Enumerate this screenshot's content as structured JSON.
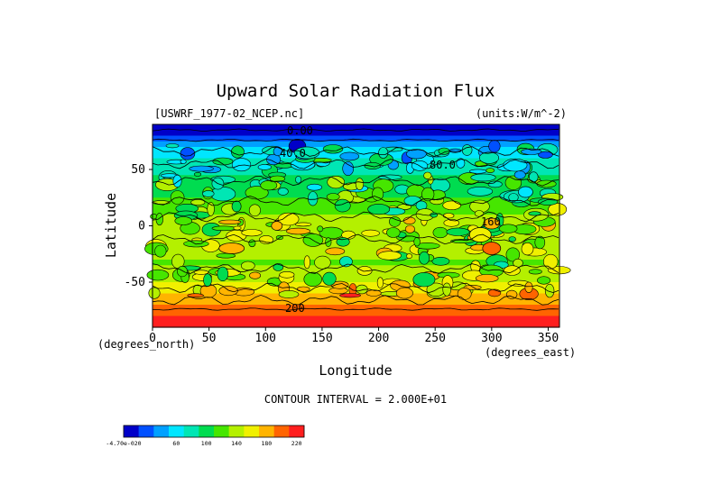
{
  "chart_data": {
    "type": "heatmap",
    "title": "Upward Solar Radiation Flux",
    "file_label": "[USWRF_1977-02_NCEP.nc]",
    "units_label": "(units:W/m^-2)",
    "xlabel": "Longitude",
    "ylabel": "Latitude",
    "x_unit_note": "(degrees_east)",
    "y_unit_note": "(degrees_north)",
    "xlim": [
      0,
      360
    ],
    "ylim": [
      -90,
      90
    ],
    "x_ticks": [
      0,
      50,
      100,
      150,
      200,
      250,
      300,
      350
    ],
    "y_ticks": [
      -50,
      0,
      50
    ],
    "contour_interval_text": "CONTOUR INTERVAL = 2.000E+01",
    "contour_labels": [
      "0.00",
      "40.0",
      "80.0",
      "160",
      "200"
    ],
    "colorbar": {
      "levels": [
        0,
        20,
        40,
        60,
        80,
        100,
        120,
        140,
        160,
        180,
        200,
        220
      ],
      "tick_labels": [
        "-4.70e-020",
        "60",
        "100",
        "140",
        "180",
        "220"
      ],
      "colors": [
        "#0000c8",
        "#0050ff",
        "#00a0ff",
        "#00e6ff",
        "#00e6b4",
        "#00dc50",
        "#46e600",
        "#b4f000",
        "#f0f000",
        "#ffb400",
        "#ff6400",
        "#ff1e1e"
      ]
    },
    "zonal_profile": [
      {
        "lat": 90,
        "value": 0
      },
      {
        "lat": 85,
        "value": 5
      },
      {
        "lat": 80,
        "value": 20
      },
      {
        "lat": 75,
        "value": 40
      },
      {
        "lat": 70,
        "value": 60
      },
      {
        "lat": 65,
        "value": 75
      },
      {
        "lat": 60,
        "value": 80
      },
      {
        "lat": 55,
        "value": 88
      },
      {
        "lat": 50,
        "value": 95
      },
      {
        "lat": 45,
        "value": 100
      },
      {
        "lat": 40,
        "value": 104
      },
      {
        "lat": 35,
        "value": 108
      },
      {
        "lat": 30,
        "value": 112
      },
      {
        "lat": 25,
        "value": 118
      },
      {
        "lat": 20,
        "value": 124
      },
      {
        "lat": 15,
        "value": 130
      },
      {
        "lat": 10,
        "value": 138
      },
      {
        "lat": 5,
        "value": 148
      },
      {
        "lat": 0,
        "value": 152
      },
      {
        "lat": -5,
        "value": 156
      },
      {
        "lat": -10,
        "value": 160
      },
      {
        "lat": -15,
        "value": 155
      },
      {
        "lat": -20,
        "value": 150
      },
      {
        "lat": -25,
        "value": 145
      },
      {
        "lat": -30,
        "value": 140
      },
      {
        "lat": -35,
        "value": 138
      },
      {
        "lat": -40,
        "value": 142
      },
      {
        "lat": -45,
        "value": 150
      },
      {
        "lat": -50,
        "value": 158
      },
      {
        "lat": -55,
        "value": 168
      },
      {
        "lat": -60,
        "value": 178
      },
      {
        "lat": -65,
        "value": 188
      },
      {
        "lat": -70,
        "value": 200
      },
      {
        "lat": -75,
        "value": 210
      },
      {
        "lat": -80,
        "value": 220
      },
      {
        "lat": -85,
        "value": 225
      },
      {
        "lat": -90,
        "value": 225
      }
    ]
  }
}
